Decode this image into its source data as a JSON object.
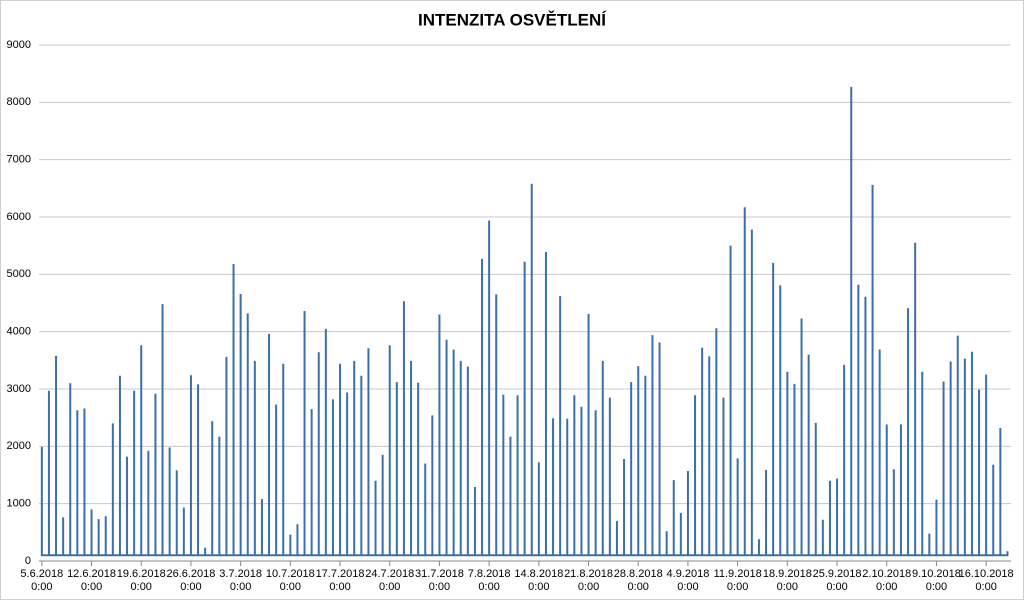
{
  "chart_data": {
    "type": "line",
    "title": "INTENZITA OSVĚTLENÍ",
    "color": "#3b6faa",
    "grid": true,
    "xlim": [
      -0.4,
      136.5
    ],
    "ylim": [
      0,
      9000
    ],
    "yticks": [
      0,
      1000,
      2000,
      3000,
      4000,
      5000,
      6000,
      7000,
      8000,
      9000
    ],
    "xticks": [
      {
        "value": 0,
        "label": "5.6.2018\n0:00"
      },
      {
        "value": 7,
        "label": "12.6.2018\n0:00"
      },
      {
        "value": 14,
        "label": "19.6.2018\n0:00"
      },
      {
        "value": 21,
        "label": "26.6.2018\n0:00"
      },
      {
        "value": 28,
        "label": "3.7.2018\n0:00"
      },
      {
        "value": 35,
        "label": "10.7.2018\n0:00"
      },
      {
        "value": 42,
        "label": "17.7.2018\n0:00"
      },
      {
        "value": 49,
        "label": "24.7.2018\n0:00"
      },
      {
        "value": 56,
        "label": "31.7.2018\n0:00"
      },
      {
        "value": 63,
        "label": "7.8.2018\n0:00"
      },
      {
        "value": 70,
        "label": "14.8.2018\n0:00"
      },
      {
        "value": 77,
        "label": "21.8.2018\n0:00"
      },
      {
        "value": 84,
        "label": "28.8.2018\n0:00"
      },
      {
        "value": 91,
        "label": "4.9.2018\n0:00"
      },
      {
        "value": 98,
        "label": "11.9.2018\n0:00"
      },
      {
        "value": 105,
        "label": "18.9.2018\n0:00"
      },
      {
        "value": 112,
        "label": "25.9.2018\n0:00"
      },
      {
        "value": 119,
        "label": "2.10.2018\n0:00"
      },
      {
        "value": 126,
        "label": "9.10.2018\n0:00"
      },
      {
        "value": 133,
        "label": "16.10.2018\n0:00"
      }
    ],
    "x": [
      0,
      0,
      0,
      1,
      1,
      1,
      2,
      2,
      2,
      3,
      3,
      3,
      4,
      4,
      4,
      5,
      5,
      5,
      6,
      6,
      6,
      7,
      7,
      7,
      8,
      8,
      8,
      9,
      9,
      9,
      10,
      10,
      10,
      11,
      11,
      11,
      12,
      12,
      12,
      13,
      13,
      13,
      14,
      14,
      14,
      15,
      15,
      15,
      16,
      16,
      16,
      17,
      17,
      17,
      18,
      18,
      18,
      19,
      19,
      19,
      20,
      20,
      20,
      21,
      21,
      21,
      22,
      22,
      22,
      23,
      23,
      23,
      24,
      24,
      24,
      25,
      25,
      25,
      26,
      26,
      26,
      27,
      27,
      27,
      28,
      28,
      28,
      29,
      29,
      29,
      30,
      30,
      30,
      31,
      31,
      31,
      32,
      32,
      32,
      33,
      33,
      33,
      34,
      34,
      34,
      35,
      35,
      35,
      36,
      36,
      36,
      37,
      37,
      37,
      38,
      38,
      38,
      39,
      39,
      39,
      40,
      40,
      40,
      41,
      41,
      41,
      42,
      42,
      42,
      43,
      43,
      43,
      44,
      44,
      44,
      45,
      45,
      45,
      46,
      46,
      46,
      47,
      47,
      47,
      48,
      48,
      48,
      49,
      49,
      49,
      50,
      50,
      50,
      51,
      51,
      51,
      52,
      52,
      52,
      53,
      53,
      53,
      54,
      54,
      54,
      55,
      55,
      55,
      56,
      56,
      56,
      57,
      57,
      57,
      58,
      58,
      58,
      59,
      59,
      59,
      60,
      60,
      60,
      61,
      61,
      61,
      62,
      62,
      62,
      63,
      63,
      63,
      64,
      64,
      64,
      65,
      65,
      65,
      66,
      66,
      66,
      67,
      67,
      67,
      68,
      68,
      68,
      69,
      69,
      69,
      70,
      70,
      70,
      71,
      71,
      71,
      72,
      72,
      72,
      73,
      73,
      73,
      74,
      74,
      74,
      75,
      75,
      75,
      76,
      76,
      76,
      77,
      77,
      77,
      78,
      78,
      78,
      79,
      79,
      79,
      80,
      80,
      80,
      81,
      81,
      81,
      82,
      82,
      82,
      83,
      83,
      83,
      84,
      84,
      84,
      85,
      85,
      85,
      86,
      86,
      86,
      87,
      87,
      87,
      88,
      88,
      88,
      89,
      89,
      89,
      90,
      90,
      90,
      91,
      91,
      91,
      92,
      92,
      92,
      93,
      93,
      93,
      94,
      94,
      94,
      95,
      95,
      95,
      96,
      96,
      96,
      97,
      97,
      97,
      98,
      98,
      98,
      99,
      99,
      99,
      100,
      100,
      100,
      101,
      101,
      101,
      102,
      102,
      102,
      103,
      103,
      103,
      104,
      104,
      104,
      105,
      105,
      105,
      106,
      106,
      106,
      107,
      107,
      107,
      108,
      108,
      108,
      109,
      109,
      109,
      110,
      110,
      110,
      111,
      111,
      111,
      112,
      112,
      112,
      113,
      113,
      113,
      114,
      114,
      114,
      115,
      115,
      115,
      116,
      116,
      116,
      117,
      117,
      117,
      118,
      118,
      118,
      119,
      119,
      119,
      120,
      120,
      120,
      121,
      121,
      121,
      122,
      122,
      122,
      123,
      123,
      123,
      124,
      124,
      124,
      125,
      125,
      125,
      126,
      126,
      126,
      127,
      127,
      127,
      128,
      128,
      128,
      129,
      129,
      129,
      130,
      130,
      130,
      131,
      131,
      131,
      132,
      132,
      132,
      133,
      133,
      133,
      134,
      134,
      134,
      135,
      135,
      135,
      136,
      136,
      136
    ],
    "values": [
      100,
      1990,
      100,
      100,
      2970,
      100,
      100,
      3580,
      100,
      100,
      760,
      100,
      100,
      3100,
      100,
      100,
      2630,
      100,
      100,
      2660,
      100,
      100,
      900,
      100,
      100,
      730,
      100,
      100,
      780,
      100,
      100,
      2400,
      100,
      100,
      3230,
      100,
      100,
      1820,
      100,
      100,
      2970,
      100,
      100,
      3760,
      100,
      100,
      1920,
      100,
      100,
      2920,
      100,
      100,
      4480,
      100,
      100,
      1980,
      100,
      100,
      1580,
      100,
      100,
      930,
      100,
      100,
      3240,
      100,
      100,
      3080,
      100,
      100,
      230,
      100,
      100,
      2440,
      100,
      100,
      2170,
      100,
      100,
      3560,
      100,
      100,
      5180,
      100,
      100,
      4660,
      100,
      100,
      4320,
      100,
      100,
      3490,
      100,
      100,
      1080,
      100,
      100,
      3960,
      100,
      100,
      2730,
      100,
      100,
      3440,
      100,
      100,
      460,
      100,
      100,
      640,
      100,
      100,
      4360,
      100,
      100,
      2650,
      100,
      100,
      3640,
      100,
      100,
      4050,
      100,
      100,
      2820,
      100,
      100,
      3440,
      100,
      100,
      2940,
      100,
      100,
      3490,
      100,
      100,
      3230,
      100,
      100,
      3710,
      100,
      100,
      1400,
      100,
      100,
      1850,
      100,
      100,
      3760,
      100,
      100,
      3120,
      100,
      100,
      4530,
      100,
      100,
      3490,
      100,
      100,
      3110,
      100,
      100,
      1700,
      100,
      100,
      2540,
      100,
      100,
      4300,
      100,
      100,
      3860,
      100,
      100,
      3690,
      100,
      100,
      3490,
      100,
      100,
      3390,
      100,
      100,
      1290,
      100,
      100,
      5270,
      100,
      100,
      5940,
      100,
      100,
      4650,
      100,
      100,
      2900,
      100,
      100,
      2170,
      100,
      100,
      2890,
      100,
      100,
      5220,
      100,
      100,
      6580,
      100,
      100,
      1720,
      100,
      100,
      5390,
      100,
      100,
      2490,
      100,
      100,
      4620,
      100,
      100,
      2480,
      100,
      100,
      2890,
      100,
      100,
      2690,
      100,
      100,
      4310,
      100,
      100,
      2630,
      100,
      100,
      3490,
      100,
      100,
      2850,
      100,
      100,
      700,
      100,
      100,
      1780,
      100,
      100,
      3120,
      100,
      100,
      3400,
      100,
      100,
      3230,
      100,
      100,
      3940,
      100,
      100,
      3810,
      100,
      100,
      520,
      100,
      100,
      1410,
      100,
      100,
      840,
      100,
      100,
      1570,
      100,
      100,
      2890,
      100,
      100,
      3720,
      100,
      100,
      3570,
      100,
      100,
      4060,
      100,
      100,
      2850,
      100,
      100,
      5500,
      100,
      100,
      1790,
      100,
      100,
      6170,
      100,
      100,
      5780,
      100,
      100,
      380,
      100,
      100,
      1590,
      100,
      100,
      5200,
      100,
      100,
      4810,
      100,
      100,
      3300,
      100,
      100,
      3090,
      100,
      100,
      4230,
      100,
      100,
      3600,
      100,
      100,
      2410,
      100,
      100,
      720,
      100,
      100,
      1400,
      100,
      100,
      1440,
      100,
      100,
      3420,
      100,
      100,
      8270,
      100,
      100,
      4820,
      100,
      100,
      4610,
      100,
      100,
      6560,
      100,
      100,
      3690,
      100,
      100,
      2380,
      100,
      100,
      1600,
      100,
      100,
      2380,
      100,
      100,
      4410,
      100,
      100,
      5550,
      100,
      100,
      3300,
      100,
      100,
      480,
      100,
      100,
      1070,
      100,
      100,
      3130,
      100,
      100,
      3480,
      100,
      100,
      3930,
      100,
      100,
      3530,
      100,
      100,
      3650,
      100,
      100,
      2990,
      100,
      100,
      3250,
      100,
      100,
      1680,
      100,
      100,
      2320,
      100,
      100,
      170,
      100
    ]
  }
}
